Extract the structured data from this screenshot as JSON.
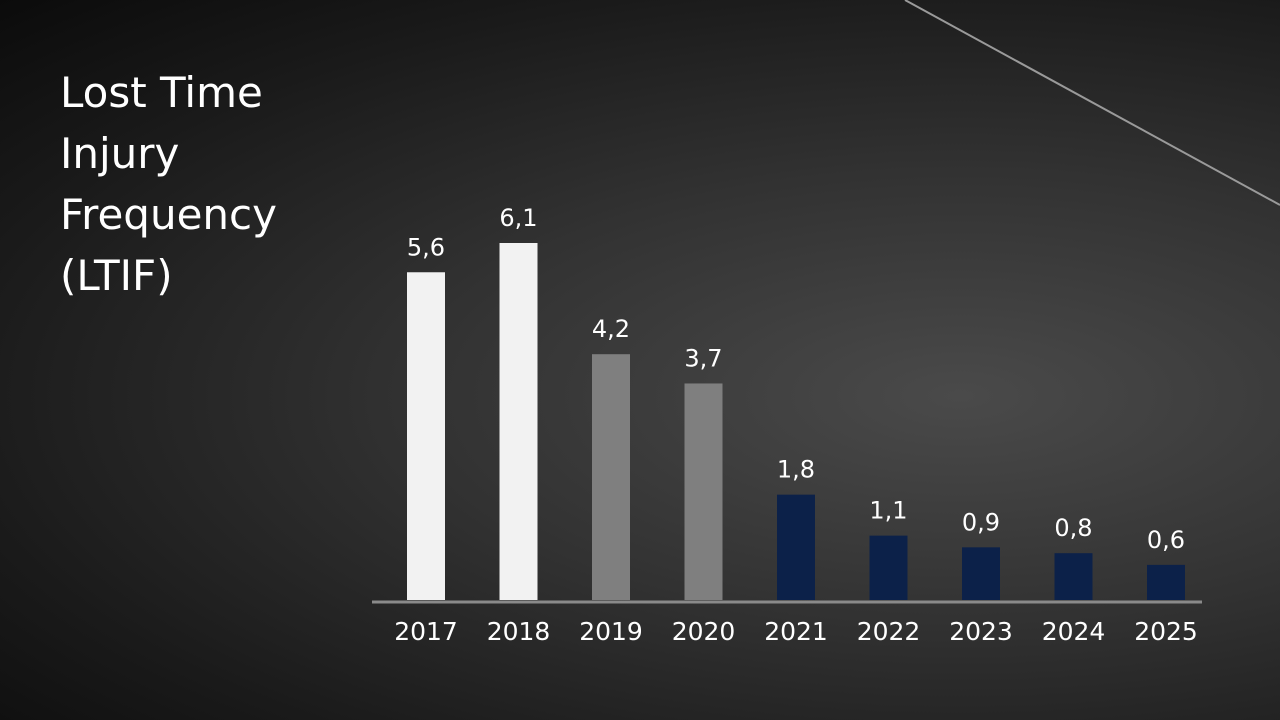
{
  "chart_data": {
    "type": "bar",
    "title": "Lost Time Injury Frequency (LTIF)",
    "categories": [
      "2017",
      "2018",
      "2019",
      "2020",
      "2021",
      "2022",
      "2023",
      "2024",
      "2025"
    ],
    "values": [
      5.6,
      6.1,
      4.2,
      3.7,
      1.8,
      1.1,
      0.9,
      0.8,
      0.6
    ],
    "value_labels": [
      "5,6",
      "6,1",
      "4,2",
      "3,7",
      "1,8",
      "1,1",
      "0,9",
      "0,8",
      "0,6"
    ],
    "colors": [
      "#f2f2f2",
      "#f2f2f2",
      "#7f7f7f",
      "#7f7f7f",
      "#0c2149",
      "#0c2149",
      "#0c2149",
      "#0c2149",
      "#0c2149"
    ]
  }
}
